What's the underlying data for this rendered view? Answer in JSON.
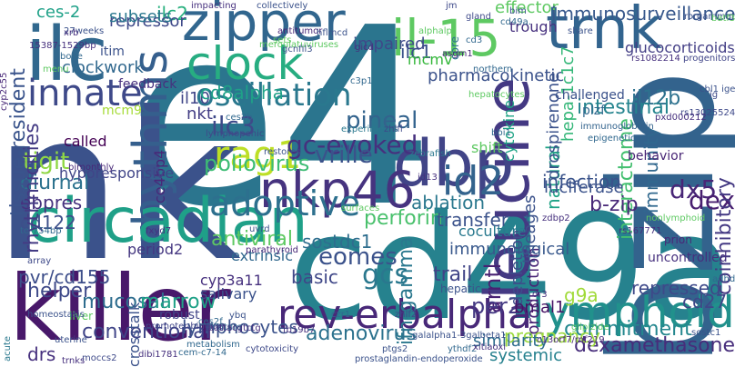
{
  "words": [
    {
      "text": "e4",
      "color": "#2b758e"
    },
    {
      "text": "nk",
      "color": "#3b528b"
    },
    {
      "text": "cd49a",
      "color": "#26828e"
    },
    {
      "text": "killer",
      "color": "#48186a"
    },
    {
      "text": "zipper",
      "color": "#31668e"
    },
    {
      "text": "il-15",
      "color": "#5ec962"
    },
    {
      "text": "trnk",
      "color": "#32648e"
    },
    {
      "text": "ilc",
      "color": "#31688e"
    },
    {
      "text": "bzip",
      "color": "#33638d"
    },
    {
      "text": "clock",
      "color": "#27ad81"
    },
    {
      "text": "leucine",
      "color": "#443983"
    },
    {
      "text": "dbp",
      "color": "#414487"
    },
    {
      "text": "innate",
      "color": "#3e4989"
    },
    {
      "text": "oscillation",
      "color": "#2a788e"
    },
    {
      "text": "rhythms",
      "color": "#355f8d"
    },
    {
      "text": "rag1",
      "color": "#bddf26"
    },
    {
      "text": "nkp46",
      "color": "#46337f"
    },
    {
      "text": "circadian",
      "color": "#1fa088"
    },
    {
      "text": "rev-erbalpha",
      "color": "#482878"
    },
    {
      "text": "lymphoid",
      "color": "#21918c"
    },
    {
      "text": "adoptive",
      "color": "#2d708e"
    },
    {
      "text": "gc-evoked",
      "color": "#46307e"
    },
    {
      "text": "ilc3",
      "color": "#3e4a89"
    },
    {
      "text": "il10",
      "color": "#404688"
    },
    {
      "text": "nkt",
      "color": "#433e85"
    },
    {
      "text": "id2",
      "color": "#33638d"
    },
    {
      "text": "pineal",
      "color": "#33638d"
    },
    {
      "text": "vrille",
      "color": "#3b528b"
    },
    {
      "text": "poliovirus",
      "color": "#3dbc74"
    },
    {
      "text": "cd8alpha",
      "color": "#1fa188"
    },
    {
      "text": "tigit",
      "color": "#8fd744"
    },
    {
      "text": "diurnal",
      "color": "#2c728e"
    },
    {
      "text": "ebpres",
      "color": "#46327e"
    },
    {
      "text": "cd122",
      "color": "#3c4f8a"
    },
    {
      "text": "rhythmicities",
      "color": "#443b84"
    },
    {
      "text": "tissue-resident",
      "color": "#3a548c"
    },
    {
      "text": "ilc2",
      "color": "#2ab07f"
    },
    {
      "text": "ilc1",
      "color": "#3b528b"
    },
    {
      "text": "eomes",
      "color": "#3b528b"
    },
    {
      "text": "perforin",
      "color": "#4ac16d"
    },
    {
      "text": "antiviral",
      "color": "#5ec962"
    },
    {
      "text": "sostdc1",
      "color": "#2e6e8e"
    },
    {
      "text": "basic",
      "color": "#3f4788"
    },
    {
      "text": "gcs",
      "color": "#2a788e"
    },
    {
      "text": "ifn-gamma",
      "color": "#2a788e"
    },
    {
      "text": "arntl",
      "color": "#482173"
    },
    {
      "text": "trail",
      "color": "#414487"
    },
    {
      "text": "per2",
      "color": "#443983"
    },
    {
      "text": "adenovirus",
      "color": "#2c728e"
    },
    {
      "text": "conventional",
      "color": "#404588"
    },
    {
      "text": "lymphocytes",
      "color": "#3b528b"
    },
    {
      "text": "commitment",
      "color": "#24878e"
    },
    {
      "text": "dexamethasone",
      "color": "#472d7b"
    },
    {
      "text": "drs",
      "color": "#46307e"
    },
    {
      "text": "mucosal",
      "color": "#2e6d8e"
    },
    {
      "text": "marrow",
      "color": "#1fa187"
    },
    {
      "text": "helper",
      "color": "#3e4989"
    },
    {
      "text": "pvr/cd155",
      "color": "#3d4e8a"
    },
    {
      "text": "interactome",
      "color": "#44bf70"
    },
    {
      "text": "immunity",
      "color": "#31688e"
    },
    {
      "text": "natural",
      "color": "#20a386"
    },
    {
      "text": "infection",
      "color": "#3a538b"
    },
    {
      "text": "dx5",
      "color": "#482677"
    },
    {
      "text": "dex",
      "color": "#481f70"
    },
    {
      "text": "b-zip",
      "color": "#482878"
    },
    {
      "text": "il12b",
      "color": "#2d718e"
    },
    {
      "text": "intestinal",
      "color": "#25848e"
    },
    {
      "text": "coinhibitory",
      "color": "#443983"
    },
    {
      "text": "glucocorticoids",
      "color": "#433e85"
    },
    {
      "text": "lineages",
      "color": "#3b528b"
    },
    {
      "text": "depletion",
      "color": "#3d4d8a"
    },
    {
      "text": "production",
      "color": "#482475"
    },
    {
      "text": "repressed",
      "color": "#3e4989"
    },
    {
      "text": "cd27",
      "color": "#3f4788"
    },
    {
      "text": "bmal1",
      "color": "#471365"
    },
    {
      "text": "g9a",
      "color": "#a0da39"
    },
    {
      "text": "pregnancy",
      "color": "#9bd93c"
    },
    {
      "text": "similarity",
      "color": "#2e6d8e"
    },
    {
      "text": "systemic",
      "color": "#26818e"
    },
    {
      "text": "ablation",
      "color": "#2a788e"
    },
    {
      "text": "transfer",
      "color": "#3b528b"
    },
    {
      "text": "luciferase",
      "color": "#3b528b"
    },
    {
      "text": "coculture",
      "color": "#29798e"
    },
    {
      "text": "immunological",
      "color": "#38588c"
    },
    {
      "text": "shift",
      "color": "#5ec962"
    },
    {
      "text": "impaired",
      "color": "#3e4989"
    },
    {
      "text": "pharmacokinetic",
      "color": "#3b528b"
    },
    {
      "text": "mcmv",
      "color": "#33b63a"
    },
    {
      "text": "hepa-1c1c7",
      "color": "#35b779"
    },
    {
      "text": "drospirenone",
      "color": "#3b528b"
    },
    {
      "text": "cytokine",
      "color": "#20a486"
    },
    {
      "text": "effector",
      "color": "#5ec962"
    },
    {
      "text": "immunosurveillance",
      "color": "#38588c"
    },
    {
      "text": "repressor",
      "color": "#3e4989"
    },
    {
      "text": "ces-2",
      "color": "#1fa188"
    },
    {
      "text": "subsets",
      "color": "#2a788e"
    },
    {
      "text": "clockwork",
      "color": "#31688e"
    },
    {
      "text": "mcm9",
      "color": "#a5db36"
    },
    {
      "text": "itim",
      "color": "#3b528b"
    },
    {
      "text": "feedback",
      "color": "#46307e"
    },
    {
      "text": "ce4bp4",
      "color": "#482878"
    },
    {
      "text": "called",
      "color": "#440154"
    },
    {
      "text": "hyporesponsive",
      "color": "#404588"
    },
    {
      "text": "period2",
      "color": "#453781"
    },
    {
      "text": "cyp3a11",
      "color": "#46307e"
    },
    {
      "text": "extrinsic",
      "color": "#31688e"
    },
    {
      "text": "salivary",
      "color": "#3b528b"
    },
    {
      "text": "robust",
      "color": "#404588"
    },
    {
      "text": "crosstalk",
      "color": "#3b528b"
    },
    {
      "text": "trough",
      "color": "#46307e"
    },
    {
      "text": "core",
      "color": "#2c728e"
    },
    {
      "text": "challenged",
      "color": "#3b528b"
    },
    {
      "text": "plzf",
      "color": "#31688e"
    },
    {
      "text": "behavior",
      "color": "#482575"
    },
    {
      "text": "hepatic",
      "color": "#3b528b"
    },
    {
      "text": "liver",
      "color": "#5ec962"
    },
    {
      "text": "lymphopenic",
      "color": "#3e4989"
    },
    {
      "text": "epigenetic",
      "color": "#31688e"
    },
    {
      "text": "immunoglobulin",
      "color": "#33638d"
    },
    {
      "text": "uncontrolled",
      "color": "#46307e"
    },
    {
      "text": "prion",
      "color": "#482878"
    },
    {
      "text": "adhd",
      "color": "#31688e"
    },
    {
      "text": "acute",
      "color": "#2a788e"
    },
    {
      "text": "homeostasis",
      "color": "#3b528b"
    },
    {
      "text": "array",
      "color": "#3e4989"
    },
    {
      "text": "trnks",
      "color": "#46307e"
    },
    {
      "text": "metabolism",
      "color": "#31688e"
    },
    {
      "text": "cytotoxicity",
      "color": "#3e4989"
    },
    {
      "text": "surfaces",
      "color": "#5ec962"
    },
    {
      "text": "restores",
      "color": "#3b528b"
    },
    {
      "text": "antitumor",
      "color": "#482878"
    },
    {
      "text": "rorgammat",
      "color": "#3b528b"
    },
    {
      "text": "progenitors",
      "color": "#404588"
    },
    {
      "text": "nonlymphoid",
      "color": "#5ec962"
    },
    {
      "text": "experiments",
      "color": "#2a788e"
    },
    {
      "text": "northern",
      "color": "#31688e"
    },
    {
      "text": "gland",
      "color": "#3e4989"
    },
    {
      "text": "impacting",
      "color": "#46307e"
    },
    {
      "text": "collectively",
      "color": "#3b528b"
    },
    {
      "text": "mature",
      "color": "#31688e"
    },
    {
      "text": "zebrafish",
      "color": "#2a788e"
    },
    {
      "text": "parathyroid",
      "color": "#482878"
    },
    {
      "text": "prostaglandin-endoperoxide",
      "color": "#3b528b"
    },
    {
      "text": "promoter-binding",
      "color": "#404588"
    },
    {
      "text": "taattacgtctg",
      "color": "#46307e"
    },
    {
      "text": "galalpha1-3galbeta1",
      "color": "#3b528b"
    },
    {
      "text": "cem-c7-14",
      "color": "#31688e"
    },
    {
      "text": "rs1082214",
      "color": "#46307e"
    },
    {
      "text": "rs167771",
      "color": "#46307e"
    },
    {
      "text": "rs13025524",
      "color": "#3e4989"
    },
    {
      "text": "bimonthly",
      "color": "#482878"
    },
    {
      "text": "to-754bp",
      "color": "#31688e"
    },
    {
      "text": "27weeks",
      "color": "#3b528b"
    },
    {
      "text": "ythdf2",
      "color": "#31688e"
    },
    {
      "text": "xitiaoxi",
      "color": "#46307e"
    },
    {
      "text": "c13orf7/rnf219",
      "color": "#482878"
    },
    {
      "text": "glipizide",
      "color": "#5ec962"
    },
    {
      "text": "sostc1",
      "color": "#3b528b"
    },
    {
      "text": "ces2f",
      "color": "#31688e"
    },
    {
      "text": "moccs2",
      "color": "#3e4989"
    },
    {
      "text": "dibi1781",
      "color": "#46307e"
    },
    {
      "text": "ybq",
      "color": "#3b528b"
    },
    {
      "text": "cyp2c55",
      "color": "#482878"
    },
    {
      "text": "xrb",
      "color": "#46307e"
    },
    {
      "text": "ptgs2",
      "color": "#3b528b"
    },
    {
      "text": "sets",
      "color": "#5ec962"
    },
    {
      "text": "meroulatuviruses",
      "color": "#5ec962"
    },
    {
      "text": "pxd000212",
      "color": "#46307e"
    },
    {
      "text": "cd49a.",
      "color": "#31688e"
    },
    {
      "text": "gcnfil3",
      "color": "#3b528b"
    },
    {
      "text": "asgm1",
      "color": "#482878"
    },
    {
      "text": "batf3",
      "color": "#5ec962"
    },
    {
      "text": "zdbp2",
      "color": "#46307e"
    },
    {
      "text": "uvrd",
      "color": "#3b528b"
    },
    {
      "text": "czr1",
      "color": "#31688e"
    },
    {
      "text": "zhlf2",
      "color": "#3e4989"
    },
    {
      "text": "fxyd7",
      "color": "#46307e"
    },
    {
      "text": "uterine",
      "color": "#3b528b"
    },
    {
      "text": "bone",
      "color": "#31688e"
    },
    {
      "text": "menu",
      "color": "#5ec962"
    },
    {
      "text": "alphalp",
      "color": "#5ec962"
    },
    {
      "text": "gicd",
      "color": "#46307e"
    },
    {
      "text": "share",
      "color": "#3b528b"
    },
    {
      "text": "hepatocytes",
      "color": "#5ec962"
    },
    {
      "text": "bbi1",
      "color": "#31688e"
    },
    {
      "text": "15387-1529bp",
      "color": "#46307e"
    },
    {
      "text": "cbl1 ige",
      "color": "#3b528b"
    },
    {
      "text": "ig",
      "color": "#3e4989"
    },
    {
      "text": "or3",
      "color": "#46307e"
    },
    {
      "text": "cd3",
      "color": "#31688e"
    },
    {
      "text": "bim",
      "color": "#3b528b"
    },
    {
      "text": "jm",
      "color": "#3e4989"
    },
    {
      "text": "ces2b",
      "color": "#31688e"
    },
    {
      "text": "fb19b7",
      "color": "#46307e"
    },
    {
      "text": "hflmcd",
      "color": "#3b528b"
    },
    {
      "text": "c3p1",
      "color": "#31688e"
    },
    {
      "text": "zhlfl",
      "color": "#3e4989"
    },
    {
      "text": "id13",
      "color": "#46307e"
    }
  ]
}
